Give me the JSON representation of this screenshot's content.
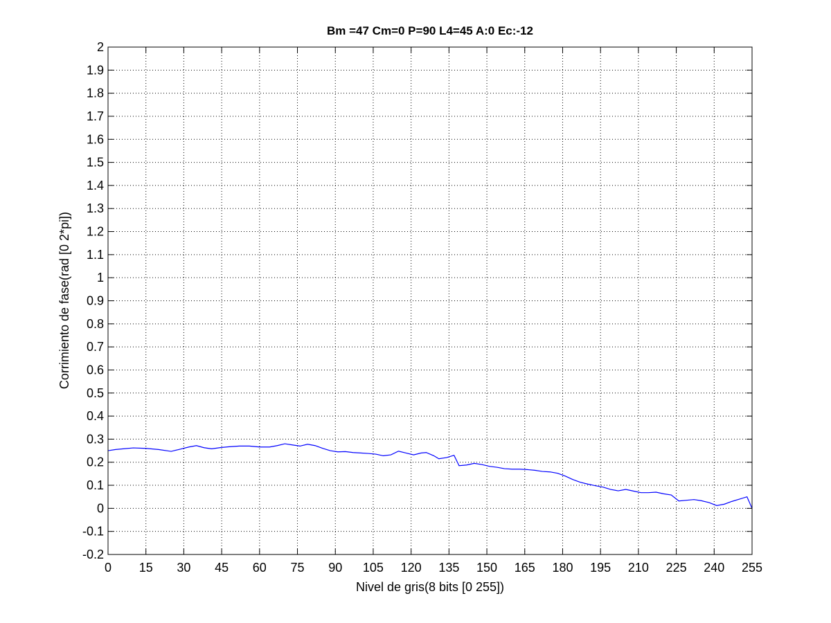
{
  "chart_data": {
    "type": "line",
    "title": "Bm =47  Cm=0  P=90  L4=45  A:0  Ec:-12",
    "xlabel": "Nivel de gris(8 bits [0 255])",
    "ylabel": "Corrimiento de fase(rad [0 2*pi])",
    "xlim": [
      0,
      255
    ],
    "ylim": [
      -0.2,
      2
    ],
    "xticks": [
      0,
      15,
      30,
      45,
      60,
      75,
      90,
      105,
      120,
      135,
      150,
      165,
      180,
      195,
      210,
      225,
      240,
      255
    ],
    "yticks": [
      -0.2,
      -0.1,
      0,
      0.1,
      0.2,
      0.3,
      0.4,
      0.5,
      0.6,
      0.7,
      0.8,
      0.9,
      1,
      1.1,
      1.2,
      1.3,
      1.4,
      1.5,
      1.6,
      1.7,
      1.8,
      1.9,
      2
    ],
    "grid": true,
    "line_color": "#0000ff",
    "series": [
      {
        "x": [
          0,
          3,
          6,
          10,
          15,
          20,
          25,
          28,
          32,
          35,
          38,
          41,
          45,
          48,
          52,
          56,
          60,
          64,
          67,
          70,
          73,
          76,
          79,
          82,
          85,
          88,
          91,
          94,
          97,
          100,
          103,
          106,
          109,
          112,
          115,
          118,
          121,
          124,
          126,
          129,
          131,
          134,
          137,
          139,
          142,
          145,
          148,
          151,
          154,
          157,
          160,
          163,
          166,
          169,
          172,
          175,
          178,
          181,
          184,
          187,
          190,
          193,
          196,
          199,
          202,
          205,
          208,
          211,
          214,
          217,
          220,
          223,
          226,
          229,
          232,
          235,
          238,
          241,
          244,
          247,
          250,
          253,
          255
        ],
        "y": [
          0.25,
          0.255,
          0.258,
          0.262,
          0.26,
          0.255,
          0.247,
          0.255,
          0.266,
          0.272,
          0.263,
          0.258,
          0.264,
          0.267,
          0.27,
          0.27,
          0.266,
          0.266,
          0.272,
          0.28,
          0.275,
          0.27,
          0.278,
          0.272,
          0.26,
          0.25,
          0.245,
          0.246,
          0.242,
          0.24,
          0.238,
          0.235,
          0.228,
          0.232,
          0.248,
          0.24,
          0.232,
          0.24,
          0.242,
          0.228,
          0.215,
          0.22,
          0.23,
          0.185,
          0.188,
          0.195,
          0.19,
          0.182,
          0.178,
          0.172,
          0.17,
          0.17,
          0.168,
          0.165,
          0.16,
          0.158,
          0.152,
          0.14,
          0.125,
          0.113,
          0.105,
          0.098,
          0.092,
          0.082,
          0.076,
          0.082,
          0.075,
          0.068,
          0.068,
          0.07,
          0.063,
          0.058,
          0.032,
          0.035,
          0.038,
          0.033,
          0.025,
          0.012,
          0.018,
          0.03,
          0.04,
          0.05,
          0.0
        ]
      }
    ]
  }
}
